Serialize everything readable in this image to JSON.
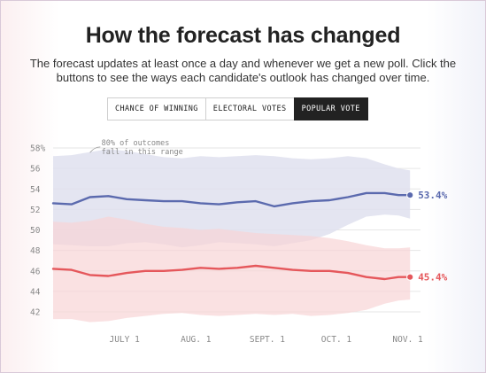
{
  "header": {
    "title": "How the forecast has changed",
    "subtitle": "The forecast updates at least once a day and whenever we get a new poll. Click the buttons to see the ways each candidate's outlook has changed over time."
  },
  "buttons": [
    {
      "label": "CHANCE OF WINNING",
      "active": false
    },
    {
      "label": "ELECTORAL VOTES",
      "active": false
    },
    {
      "label": "POPULAR VOTE",
      "active": true
    }
  ],
  "chart_data": {
    "type": "line",
    "title": "",
    "xlabel": "",
    "ylabel": "",
    "ylim": [
      42,
      58
    ],
    "y_ticks": [
      42,
      44,
      46,
      48,
      50,
      52,
      54,
      56,
      58
    ],
    "y_tick_labels": [
      "42",
      "44",
      "46",
      "48",
      "50",
      "52",
      "54",
      "56",
      "58%"
    ],
    "x_tick_labels": [
      "JULY 1",
      "AUG. 1",
      "SEPT. 1",
      "OCT. 1",
      "NOV. 1"
    ],
    "x_tick_days": [
      31,
      62,
      93,
      123,
      154
    ],
    "xlim_days": [
      0,
      158
    ],
    "annotation": [
      "80% of outcomes",
      "fall in this range"
    ],
    "grid": true,
    "colors": {
      "blue": "#5b6aae",
      "blue_band": "#dfe1ef",
      "red": "#e5575b",
      "red_band": "#f8d4d5"
    },
    "series": [
      {
        "name": "",
        "color": "#5b6aae",
        "end_label": "53.4%",
        "x_days": [
          0,
          8,
          16,
          24,
          32,
          40,
          48,
          56,
          64,
          72,
          80,
          88,
          96,
          104,
          112,
          120,
          128,
          136,
          144,
          150,
          155
        ],
        "values": [
          52.6,
          52.5,
          53.2,
          53.3,
          53.0,
          52.9,
          52.8,
          52.8,
          52.6,
          52.5,
          52.7,
          52.8,
          52.3,
          52.6,
          52.8,
          52.9,
          53.2,
          53.6,
          53.6,
          53.4,
          53.4
        ],
        "band_upper": [
          57.2,
          57.3,
          57.6,
          57.9,
          57.7,
          57.4,
          57.1,
          57.0,
          57.2,
          57.1,
          57.2,
          57.3,
          57.2,
          57.0,
          56.9,
          57.0,
          57.2,
          57.0,
          56.4,
          56.0,
          55.8
        ],
        "band_lower": [
          48.6,
          48.5,
          48.4,
          48.4,
          48.7,
          48.8,
          48.6,
          48.3,
          48.5,
          48.8,
          48.7,
          48.6,
          48.4,
          48.7,
          49.0,
          49.6,
          50.5,
          51.3,
          51.5,
          51.4,
          51.1
        ]
      },
      {
        "name": "",
        "color": "#e5575b",
        "end_label": "45.4%",
        "x_days": [
          0,
          8,
          16,
          24,
          32,
          40,
          48,
          56,
          64,
          72,
          80,
          88,
          96,
          104,
          112,
          120,
          128,
          136,
          144,
          150,
          155
        ],
        "values": [
          46.2,
          46.1,
          45.6,
          45.5,
          45.8,
          46.0,
          46.0,
          46.1,
          46.3,
          46.2,
          46.3,
          46.5,
          46.3,
          46.1,
          46.0,
          46.0,
          45.8,
          45.4,
          45.2,
          45.4,
          45.4
        ],
        "band_upper": [
          50.8,
          50.7,
          50.9,
          51.3,
          51.0,
          50.6,
          50.3,
          50.2,
          50.0,
          50.1,
          49.9,
          49.7,
          49.6,
          49.5,
          49.4,
          49.2,
          48.9,
          48.5,
          48.2,
          48.2,
          48.3
        ],
        "band_lower": [
          41.3,
          41.3,
          41.0,
          41.1,
          41.4,
          41.6,
          41.8,
          41.9,
          41.7,
          41.6,
          41.7,
          41.8,
          41.7,
          41.8,
          41.6,
          41.7,
          41.9,
          42.2,
          42.8,
          43.1,
          43.2
        ]
      }
    ]
  }
}
